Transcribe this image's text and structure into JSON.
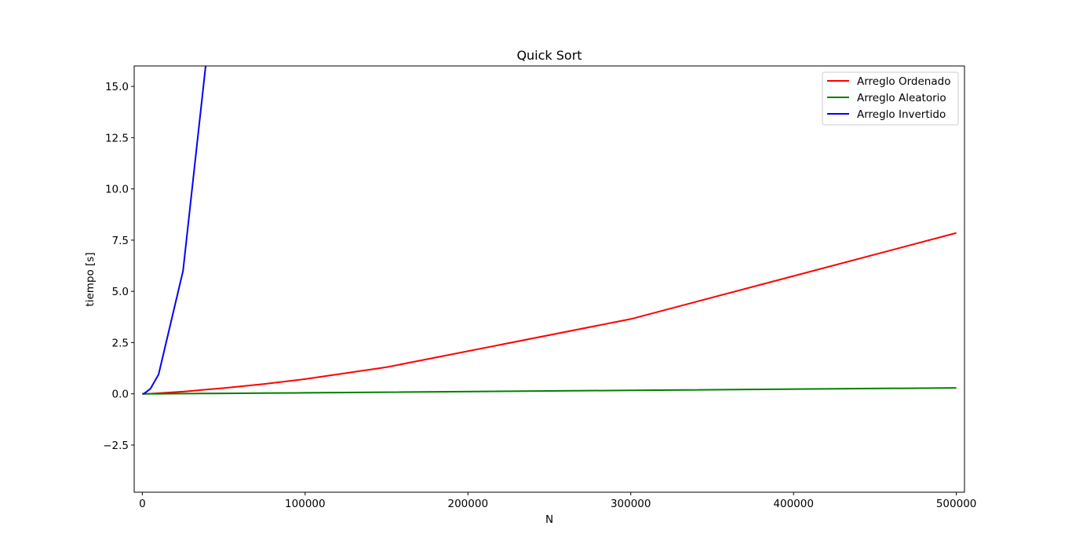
{
  "chart_data": {
    "type": "line",
    "title": "Quick Sort",
    "xlabel": "N",
    "ylabel": "tiempo [s]",
    "xlim": [
      -5000,
      505000
    ],
    "ylim": [
      -4.8,
      16.0
    ],
    "xticks": [
      0,
      100000,
      200000,
      300000,
      400000,
      500000
    ],
    "xtick_labels": [
      "0",
      "100000",
      "200000",
      "300000",
      "400000",
      "500000"
    ],
    "yticks": [
      -2.5,
      0.0,
      2.5,
      5.0,
      7.5,
      10.0,
      12.5,
      15.0
    ],
    "ytick_labels": [
      "−2.5",
      "0.0",
      "2.5",
      "5.0",
      "7.5",
      "10.0",
      "12.5",
      "15.0"
    ],
    "grid": false,
    "legend_position": "upper right",
    "series": [
      {
        "name": "Arreglo Ordenado",
        "color": "#ff0000",
        "x": [
          0,
          1000,
          5000,
          10000,
          25000,
          50000,
          75000,
          100000,
          150000,
          300000,
          500000
        ],
        "y": [
          0.0,
          0.001,
          0.008,
          0.03,
          0.11,
          0.28,
          0.48,
          0.72,
          1.3,
          3.65,
          7.85
        ]
      },
      {
        "name": "Arreglo Aleatorio",
        "color": "#008000",
        "x": [
          0,
          1000,
          5000,
          10000,
          25000,
          50000,
          75000,
          100000,
          150000,
          300000,
          500000
        ],
        "y": [
          0.0,
          0.0,
          0.002,
          0.004,
          0.01,
          0.022,
          0.035,
          0.05,
          0.08,
          0.17,
          0.29
        ]
      },
      {
        "name": "Arreglo Invertido",
        "color": "#0000ff",
        "x": [
          0,
          1000,
          5000,
          10000,
          25000,
          50000
        ],
        "y": [
          0.0,
          0.01,
          0.25,
          0.95,
          6.0,
          24.0
        ]
      }
    ]
  }
}
